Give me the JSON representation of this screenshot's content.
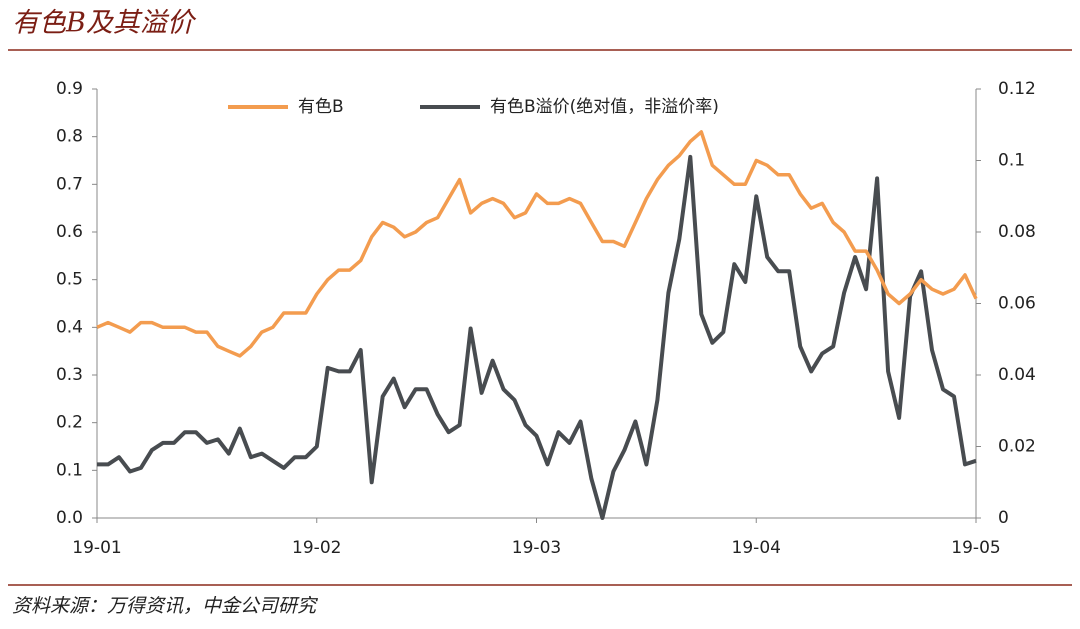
{
  "chart_data": {
    "type": "line",
    "title": "有色B及其溢价",
    "source": "资料来源：万得资讯，中金公司研究",
    "categories": [
      "19-01",
      null,
      null,
      null,
      null,
      null,
      null,
      null,
      null,
      null,
      null,
      null,
      null,
      null,
      null,
      null,
      null,
      null,
      null,
      null,
      "19-02",
      null,
      null,
      null,
      null,
      null,
      null,
      null,
      null,
      null,
      null,
      null,
      null,
      null,
      null,
      null,
      null,
      null,
      null,
      null,
      "19-03",
      null,
      null,
      null,
      null,
      null,
      null,
      null,
      null,
      null,
      null,
      null,
      null,
      null,
      null,
      null,
      null,
      null,
      null,
      null,
      "19-04",
      null,
      null,
      null,
      null,
      null,
      null,
      null,
      null,
      null,
      null,
      null,
      null,
      null,
      null,
      null,
      null,
      null,
      null,
      null,
      "19-05"
    ],
    "series": [
      {
        "name": "有色B",
        "color": "#f39c4f",
        "axis": "y",
        "values": [
          0.4,
          0.41,
          0.4,
          0.39,
          0.41,
          0.41,
          0.4,
          0.4,
          0.4,
          0.39,
          0.39,
          0.36,
          0.35,
          0.34,
          0.36,
          0.39,
          0.4,
          0.43,
          0.43,
          0.43,
          0.47,
          0.5,
          0.52,
          0.52,
          0.54,
          0.59,
          0.62,
          0.61,
          0.59,
          0.6,
          0.62,
          0.63,
          0.67,
          0.71,
          0.64,
          0.66,
          0.67,
          0.66,
          0.63,
          0.64,
          0.68,
          0.66,
          0.66,
          0.67,
          0.66,
          0.62,
          0.58,
          0.58,
          0.57,
          0.62,
          0.67,
          0.71,
          0.74,
          0.76,
          0.79,
          0.81,
          0.74,
          0.72,
          0.7,
          0.7,
          0.75,
          0.74,
          0.72,
          0.72,
          0.68,
          0.65,
          0.66,
          0.62,
          0.6,
          0.56,
          0.56,
          0.52,
          0.47,
          0.45,
          0.47,
          0.5,
          0.48,
          0.47,
          0.48,
          0.51,
          0.46
        ]
      },
      {
        "name": "有色B溢价(绝对值，非溢价率)",
        "color": "#484c50",
        "axis": "y2",
        "values": [
          0.015,
          0.015,
          0.017,
          0.013,
          0.014,
          0.019,
          0.021,
          0.021,
          0.024,
          0.024,
          0.021,
          0.022,
          0.018,
          0.025,
          0.017,
          0.018,
          0.016,
          0.014,
          0.017,
          0.017,
          0.02,
          0.042,
          0.041,
          0.041,
          0.047,
          0.01,
          0.034,
          0.039,
          0.031,
          0.036,
          0.036,
          0.029,
          0.024,
          0.026,
          0.053,
          0.035,
          0.044,
          0.036,
          0.033,
          0.026,
          0.023,
          0.015,
          0.024,
          0.021,
          0.027,
          0.011,
          0.0,
          0.013,
          0.019,
          0.027,
          0.015,
          0.033,
          0.063,
          0.078,
          0.101,
          0.057,
          0.049,
          0.052,
          0.071,
          0.066,
          0.09,
          0.073,
          0.069,
          0.069,
          0.048,
          0.041,
          0.046,
          0.048,
          0.063,
          0.073,
          0.064,
          0.095,
          0.041,
          0.028,
          0.062,
          0.069,
          0.047,
          0.036,
          0.034,
          0.015,
          0.016
        ]
      }
    ],
    "ylim": [
      0,
      0.9
    ],
    "yticks": [
      {
        "value": 0,
        "label": "0.0"
      },
      0.1,
      0.2,
      0.3,
      0.4,
      0.5,
      0.6,
      0.7,
      0.8,
      0.9
    ],
    "y2lim": [
      0,
      0.12
    ],
    "y2ticks": [
      0,
      0.02,
      0.04,
      0.06,
      0.08,
      0.1,
      0.12
    ],
    "legend": "top"
  }
}
